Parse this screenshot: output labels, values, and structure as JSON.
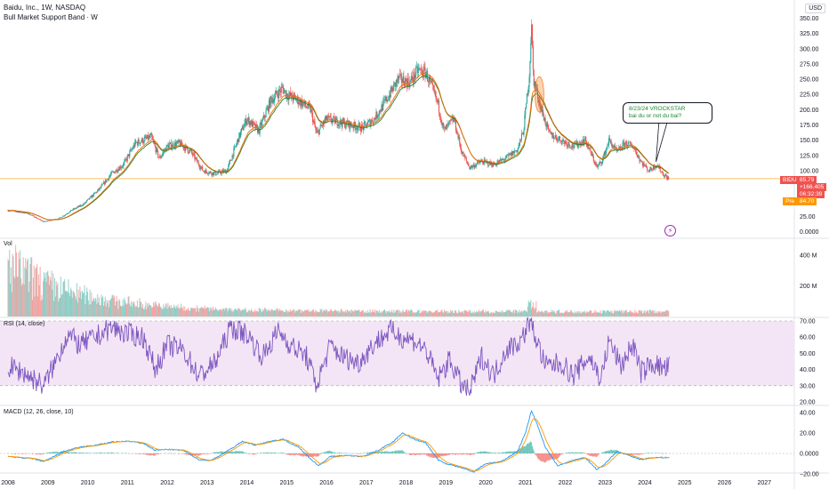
{
  "header": {
    "symbol_line": "Baidu, Inc., 1W, NASDAQ",
    "indicator_line": "Bull Market Support Band · W",
    "currency": "USD"
  },
  "annotation": {
    "line1": "8/23/24 VROCKSTAR",
    "line2": "bai du or not du bai?"
  },
  "price_tags": {
    "symbol": "BIDU",
    "last": "85.79",
    "change": "+166.405",
    "countdown": "06:32:39",
    "pre_label": "Pre",
    "pre_value": "84.70"
  },
  "panes": {
    "volume_label": "Vol",
    "rsi_label": "RSI (14, close)",
    "macd_label": "MACD (12, 26, close, 10)"
  },
  "colors": {
    "up": "#26a69a",
    "down": "#ef5350",
    "support_band_fast": "#ef6c00",
    "support_band_slow": "#2e7d32",
    "rsi_line": "#7e57c2",
    "rsi_band": "#f3e5f5",
    "macd_line": "#2196f3",
    "signal_line": "#ff9800",
    "ref_line": "#ffcc80"
  },
  "icons": {
    "alert": "bolt-icon"
  },
  "chart_data": [
    {
      "type": "candlestick",
      "title": "Baidu, Inc., 1W, NASDAQ",
      "x_ticks": [
        "2008",
        "2009",
        "2010",
        "2011",
        "2012",
        "2013",
        "2014",
        "2015",
        "2016",
        "2017",
        "2018",
        "2019",
        "2020",
        "2021",
        "2022",
        "2023",
        "2024",
        "2025",
        "2026",
        "2027"
      ],
      "y_ticks": [
        "350.00",
        "325.00",
        "300.00",
        "275.00",
        "250.00",
        "225.00",
        "200.00",
        "175.00",
        "150.00",
        "125.00",
        "100.00",
        "75.00",
        "50.00",
        "25.00",
        "0.0000"
      ],
      "ylim": [
        0,
        360
      ],
      "price_path": [
        [
          2008.0,
          35
        ],
        [
          2008.5,
          30
        ],
        [
          2008.9,
          16
        ],
        [
          2009.3,
          22
        ],
        [
          2009.6,
          35
        ],
        [
          2009.9,
          45
        ],
        [
          2010.3,
          70
        ],
        [
          2010.6,
          95
        ],
        [
          2010.9,
          110
        ],
        [
          2011.2,
          145
        ],
        [
          2011.6,
          155
        ],
        [
          2011.8,
          120
        ],
        [
          2012.0,
          140
        ],
        [
          2012.3,
          145
        ],
        [
          2012.6,
          130
        ],
        [
          2012.9,
          100
        ],
        [
          2013.2,
          95
        ],
        [
          2013.5,
          100
        ],
        [
          2013.8,
          155
        ],
        [
          2014.0,
          185
        ],
        [
          2014.3,
          165
        ],
        [
          2014.6,
          215
        ],
        [
          2014.9,
          235
        ],
        [
          2015.0,
          225
        ],
        [
          2015.3,
          215
        ],
        [
          2015.6,
          200
        ],
        [
          2015.75,
          160
        ],
        [
          2016.0,
          185
        ],
        [
          2016.3,
          180
        ],
        [
          2016.6,
          175
        ],
        [
          2016.9,
          170
        ],
        [
          2017.2,
          185
        ],
        [
          2017.5,
          215
        ],
        [
          2017.8,
          250
        ],
        [
          2018.1,
          245
        ],
        [
          2018.3,
          265
        ],
        [
          2018.5,
          260
        ],
        [
          2018.8,
          210
        ],
        [
          2018.95,
          165
        ],
        [
          2019.2,
          185
        ],
        [
          2019.4,
          130
        ],
        [
          2019.6,
          105
        ],
        [
          2019.9,
          115
        ],
        [
          2020.2,
          110
        ],
        [
          2020.5,
          120
        ],
        [
          2020.8,
          135
        ],
        [
          2020.95,
          165
        ],
        [
          2021.1,
          260
        ],
        [
          2021.15,
          340
        ],
        [
          2021.2,
          250
        ],
        [
          2021.4,
          200
        ],
        [
          2021.6,
          160
        ],
        [
          2021.9,
          150
        ],
        [
          2022.2,
          140
        ],
        [
          2022.5,
          150
        ],
        [
          2022.8,
          105
        ],
        [
          2022.95,
          120
        ],
        [
          2023.1,
          150
        ],
        [
          2023.3,
          130
        ],
        [
          2023.5,
          145
        ],
        [
          2023.7,
          140
        ],
        [
          2023.9,
          115
        ],
        [
          2024.1,
          100
        ],
        [
          2024.3,
          110
        ],
        [
          2024.45,
          95
        ],
        [
          2024.6,
          86
        ]
      ],
      "support_band": {
        "series": [
          "fast",
          "slow"
        ]
      },
      "last_price": 85.79,
      "premarket_price": 84.7
    },
    {
      "type": "bar",
      "title": "Vol",
      "y_ticks": [
        "400 M",
        "200 M"
      ],
      "ylim": [
        0,
        500
      ]
    },
    {
      "type": "line",
      "title": "RSI (14, close)",
      "y_ticks": [
        "70.00",
        "60.00",
        "50.00",
        "40.00",
        "30.00",
        "20.00"
      ],
      "ylim": [
        20,
        72
      ],
      "band": [
        30,
        70
      ],
      "rsi_path": [
        [
          2008.0,
          42
        ],
        [
          2008.4,
          38
        ],
        [
          2008.9,
          30
        ],
        [
          2009.2,
          45
        ],
        [
          2009.5,
          62
        ],
        [
          2009.8,
          55
        ],
        [
          2010.2,
          60
        ],
        [
          2010.6,
          66
        ],
        [
          2011.0,
          62
        ],
        [
          2011.4,
          60
        ],
        [
          2011.7,
          40
        ],
        [
          2012.0,
          55
        ],
        [
          2012.4,
          52
        ],
        [
          2012.8,
          36
        ],
        [
          2013.2,
          44
        ],
        [
          2013.6,
          66
        ],
        [
          2014.0,
          62
        ],
        [
          2014.4,
          48
        ],
        [
          2014.8,
          64
        ],
        [
          2015.1,
          55
        ],
        [
          2015.5,
          48
        ],
        [
          2015.75,
          30
        ],
        [
          2016.1,
          55
        ],
        [
          2016.4,
          48
        ],
        [
          2016.8,
          44
        ],
        [
          2017.2,
          56
        ],
        [
          2017.6,
          64
        ],
        [
          2017.9,
          60
        ],
        [
          2018.2,
          58
        ],
        [
          2018.5,
          52
        ],
        [
          2018.8,
          34
        ],
        [
          2019.1,
          46
        ],
        [
          2019.4,
          30
        ],
        [
          2019.6,
          26
        ],
        [
          2019.9,
          48
        ],
        [
          2020.2,
          36
        ],
        [
          2020.5,
          52
        ],
        [
          2020.9,
          58
        ],
        [
          2021.1,
          70
        ],
        [
          2021.2,
          64
        ],
        [
          2021.5,
          42
        ],
        [
          2021.9,
          44
        ],
        [
          2022.2,
          36
        ],
        [
          2022.6,
          48
        ],
        [
          2022.9,
          34
        ],
        [
          2023.1,
          58
        ],
        [
          2023.4,
          42
        ],
        [
          2023.7,
          56
        ],
        [
          2023.9,
          38
        ],
        [
          2024.2,
          44
        ],
        [
          2024.5,
          40
        ],
        [
          2024.6,
          42
        ]
      ]
    },
    {
      "type": "line",
      "title": "MACD (12, 26, close, 10)",
      "y_ticks": [
        "40.00",
        "20.00",
        "0.0000",
        "−20.00"
      ],
      "ylim": [
        -24,
        45
      ],
      "macd_path": [
        [
          2008.0,
          -3
        ],
        [
          2008.6,
          -5
        ],
        [
          2008.9,
          -8
        ],
        [
          2009.4,
          2
        ],
        [
          2009.8,
          6
        ],
        [
          2010.2,
          8
        ],
        [
          2010.6,
          11
        ],
        [
          2011.0,
          12
        ],
        [
          2011.4,
          10
        ],
        [
          2011.7,
          3
        ],
        [
          2012.0,
          4
        ],
        [
          2012.4,
          3
        ],
        [
          2012.8,
          -6
        ],
        [
          2013.1,
          -7
        ],
        [
          2013.5,
          2
        ],
        [
          2013.9,
          12
        ],
        [
          2014.2,
          8
        ],
        [
          2014.6,
          12
        ],
        [
          2014.9,
          14
        ],
        [
          2015.3,
          6
        ],
        [
          2015.6,
          -5
        ],
        [
          2015.8,
          -12
        ],
        [
          2016.1,
          -3
        ],
        [
          2016.5,
          -2
        ],
        [
          2016.9,
          -3
        ],
        [
          2017.3,
          3
        ],
        [
          2017.7,
          12
        ],
        [
          2017.9,
          20
        ],
        [
          2018.2,
          14
        ],
        [
          2018.5,
          10
        ],
        [
          2018.8,
          -6
        ],
        [
          2019.0,
          -10
        ],
        [
          2019.4,
          -14
        ],
        [
          2019.7,
          -18
        ],
        [
          2020.0,
          -10
        ],
        [
          2020.4,
          -8
        ],
        [
          2020.8,
          2
        ],
        [
          2021.0,
          20
        ],
        [
          2021.15,
          42
        ],
        [
          2021.3,
          28
        ],
        [
          2021.5,
          6
        ],
        [
          2021.8,
          -12
        ],
        [
          2022.1,
          -8
        ],
        [
          2022.5,
          -4
        ],
        [
          2022.8,
          -16
        ],
        [
          2023.0,
          -10
        ],
        [
          2023.3,
          2
        ],
        [
          2023.6,
          -2
        ],
        [
          2023.9,
          -6
        ],
        [
          2024.2,
          -4
        ],
        [
          2024.6,
          -4
        ]
      ]
    }
  ]
}
